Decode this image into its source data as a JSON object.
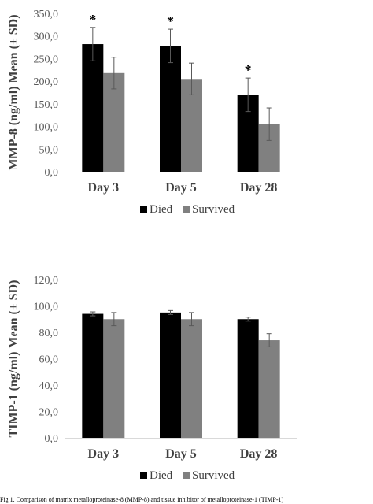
{
  "chart_data": [
    {
      "type": "bar",
      "categories": [
        "Day 3",
        "Day 5",
        "Day 28"
      ],
      "ylabel": "MMP-8 (ng/ml) Mean (± SD)",
      "ylim": [
        0,
        350
      ],
      "yticks": [
        "0,0",
        "50,0",
        "100,0",
        "150,0",
        "200,0",
        "250,0",
        "300,0",
        "350,0"
      ],
      "series": [
        {
          "name": "Died",
          "color": "#000000",
          "values": [
            282,
            278,
            170
          ],
          "sd": [
            37,
            37,
            37
          ]
        },
        {
          "name": "Survived",
          "color": "#808080",
          "values": [
            218,
            205,
            105
          ],
          "sd": [
            35,
            35,
            36
          ]
        }
      ],
      "significance": [
        "*",
        "*",
        "*"
      ],
      "legend_position": "bottom",
      "grid": false
    },
    {
      "type": "bar",
      "categories": [
        "Day 3",
        "Day 5",
        "Day 28"
      ],
      "ylabel": "TIMP-1 (ng/ml) Mean (± SD)",
      "ylim": [
        0,
        120
      ],
      "yticks": [
        "0,0",
        "20,0",
        "40,0",
        "60,0",
        "80,0",
        "100,0",
        "120,0"
      ],
      "series": [
        {
          "name": "Died",
          "color": "#000000",
          "values": [
            94,
            95,
            90
          ],
          "sd": [
            1.5,
            1.5,
            1.5
          ]
        },
        {
          "name": "Survived",
          "color": "#808080",
          "values": [
            90,
            90,
            74
          ],
          "sd": [
            5,
            5,
            5
          ]
        }
      ],
      "legend_position": "bottom",
      "grid": false
    }
  ],
  "caption": "Fig 1. Comparison of matrix metalloproteinase-8 (MMP-8) and tissue inhibitor of metalloproteinase-1 (TIMP-1)"
}
